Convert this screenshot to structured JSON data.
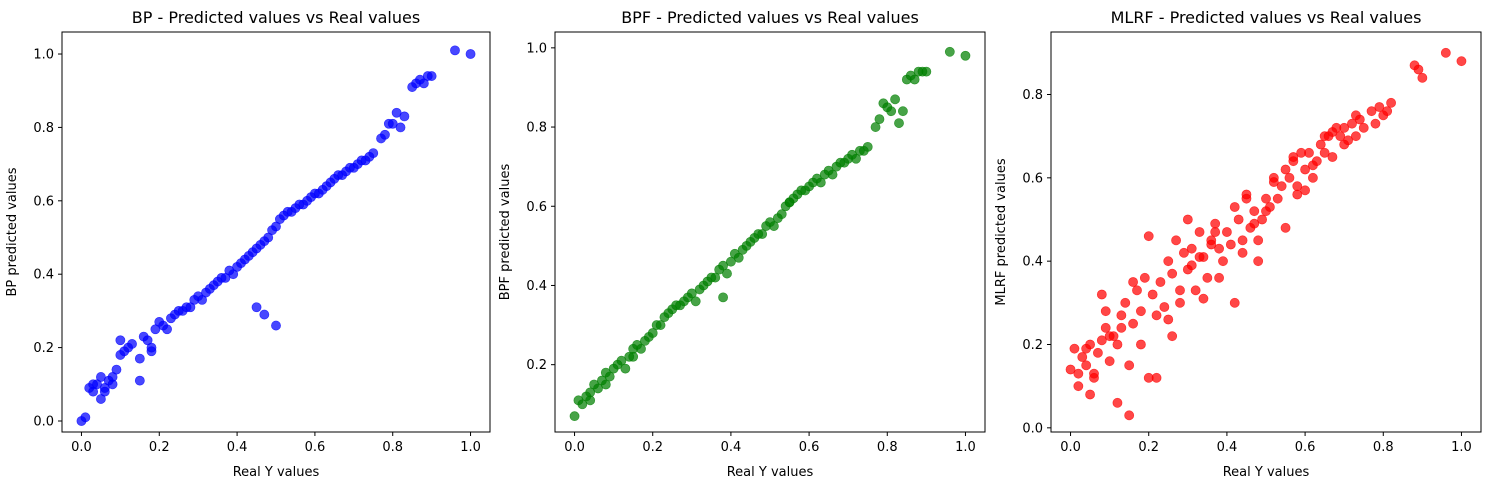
{
  "chart_data": [
    {
      "type": "scatter",
      "title": "BP - Predicted values vs Real values",
      "xlabel": "Real Y values",
      "ylabel": "BP predicted values",
      "xlim": [
        -0.05,
        1.05
      ],
      "ylim": [
        -0.03,
        1.06
      ],
      "xticks": [
        "0.0",
        "0.2",
        "0.4",
        "0.6",
        "0.8",
        "1.0"
      ],
      "yticks": [
        "0.0",
        "0.2",
        "0.4",
        "0.6",
        "0.8",
        "1.0"
      ],
      "color": "#0000ff",
      "grid": false,
      "series": [
        {
          "x": [
            0.0,
            0.01,
            0.02,
            0.03,
            0.04,
            0.05,
            0.05,
            0.06,
            0.07,
            0.08,
            0.09,
            0.1,
            0.1,
            0.11,
            0.12,
            0.13,
            0.15,
            0.16,
            0.17,
            0.18,
            0.19,
            0.2,
            0.21,
            0.22,
            0.23,
            0.24,
            0.25,
            0.26,
            0.27,
            0.28,
            0.29,
            0.3,
            0.31,
            0.32,
            0.33,
            0.34,
            0.35,
            0.36,
            0.37,
            0.38,
            0.39,
            0.4,
            0.41,
            0.42,
            0.43,
            0.44,
            0.45,
            0.46,
            0.47,
            0.48,
            0.49,
            0.5,
            0.51,
            0.52,
            0.53,
            0.54,
            0.55,
            0.56,
            0.57,
            0.58,
            0.59,
            0.6,
            0.61,
            0.62,
            0.63,
            0.64,
            0.65,
            0.66,
            0.67,
            0.68,
            0.69,
            0.7,
            0.71,
            0.72,
            0.73,
            0.74,
            0.75,
            0.77,
            0.78,
            0.79,
            0.8,
            0.81,
            0.82,
            0.83,
            0.85,
            0.86,
            0.87,
            0.88,
            0.89,
            0.9,
            0.96,
            1.0,
            0.45,
            0.47,
            0.5,
            0.03,
            0.06,
            0.08,
            0.15,
            0.18
          ],
          "y": [
            0.0,
            0.01,
            0.09,
            0.08,
            0.1,
            0.06,
            0.12,
            0.09,
            0.11,
            0.1,
            0.14,
            0.18,
            0.22,
            0.19,
            0.2,
            0.21,
            0.17,
            0.23,
            0.22,
            0.19,
            0.25,
            0.27,
            0.26,
            0.25,
            0.28,
            0.29,
            0.3,
            0.3,
            0.31,
            0.31,
            0.33,
            0.34,
            0.33,
            0.35,
            0.36,
            0.37,
            0.38,
            0.39,
            0.39,
            0.41,
            0.4,
            0.42,
            0.43,
            0.44,
            0.45,
            0.46,
            0.47,
            0.48,
            0.49,
            0.5,
            0.52,
            0.53,
            0.55,
            0.56,
            0.57,
            0.57,
            0.58,
            0.59,
            0.59,
            0.6,
            0.61,
            0.62,
            0.62,
            0.63,
            0.64,
            0.65,
            0.66,
            0.67,
            0.67,
            0.68,
            0.69,
            0.69,
            0.7,
            0.71,
            0.71,
            0.72,
            0.73,
            0.77,
            0.78,
            0.81,
            0.81,
            0.84,
            0.8,
            0.83,
            0.91,
            0.92,
            0.93,
            0.92,
            0.94,
            0.94,
            1.01,
            1.0,
            0.31,
            0.29,
            0.26,
            0.1,
            0.08,
            0.12,
            0.11,
            0.2
          ]
        }
      ]
    },
    {
      "type": "scatter",
      "title": "BPF - Predicted values vs Real values",
      "xlabel": "Real Y values",
      "ylabel": "BPF predicted values",
      "xlim": [
        -0.05,
        1.05
      ],
      "ylim": [
        0.03,
        1.04
      ],
      "xticks": [
        "0.0",
        "0.2",
        "0.4",
        "0.6",
        "0.8",
        "1.0"
      ],
      "yticks": [
        "0.2",
        "0.4",
        "0.6",
        "0.8",
        "1.0"
      ],
      "color": "#008000",
      "grid": false,
      "series": [
        {
          "x": [
            0.0,
            0.01,
            0.02,
            0.03,
            0.04,
            0.05,
            0.06,
            0.07,
            0.08,
            0.09,
            0.1,
            0.11,
            0.12,
            0.13,
            0.14,
            0.15,
            0.16,
            0.17,
            0.18,
            0.19,
            0.2,
            0.21,
            0.22,
            0.23,
            0.24,
            0.25,
            0.26,
            0.27,
            0.28,
            0.29,
            0.3,
            0.31,
            0.32,
            0.33,
            0.34,
            0.35,
            0.36,
            0.37,
            0.38,
            0.39,
            0.4,
            0.41,
            0.42,
            0.43,
            0.44,
            0.45,
            0.46,
            0.47,
            0.48,
            0.49,
            0.5,
            0.51,
            0.52,
            0.53,
            0.54,
            0.55,
            0.56,
            0.57,
            0.58,
            0.59,
            0.6,
            0.61,
            0.62,
            0.63,
            0.64,
            0.65,
            0.66,
            0.67,
            0.68,
            0.69,
            0.7,
            0.71,
            0.72,
            0.73,
            0.74,
            0.75,
            0.77,
            0.78,
            0.79,
            0.8,
            0.81,
            0.82,
            0.83,
            0.84,
            0.85,
            0.86,
            0.87,
            0.88,
            0.89,
            0.9,
            0.96,
            1.0,
            0.04,
            0.08,
            0.15,
            0.38,
            0.55
          ],
          "y": [
            0.07,
            0.11,
            0.1,
            0.12,
            0.13,
            0.15,
            0.14,
            0.16,
            0.15,
            0.17,
            0.19,
            0.2,
            0.21,
            0.19,
            0.22,
            0.24,
            0.25,
            0.24,
            0.26,
            0.27,
            0.28,
            0.3,
            0.3,
            0.32,
            0.33,
            0.34,
            0.35,
            0.35,
            0.36,
            0.37,
            0.38,
            0.36,
            0.39,
            0.4,
            0.41,
            0.42,
            0.42,
            0.44,
            0.45,
            0.43,
            0.46,
            0.48,
            0.47,
            0.49,
            0.5,
            0.51,
            0.52,
            0.53,
            0.53,
            0.55,
            0.56,
            0.55,
            0.57,
            0.58,
            0.6,
            0.61,
            0.62,
            0.63,
            0.64,
            0.64,
            0.65,
            0.66,
            0.67,
            0.66,
            0.68,
            0.69,
            0.68,
            0.7,
            0.71,
            0.71,
            0.72,
            0.73,
            0.72,
            0.74,
            0.74,
            0.75,
            0.8,
            0.82,
            0.86,
            0.85,
            0.84,
            0.87,
            0.81,
            0.84,
            0.92,
            0.93,
            0.92,
            0.94,
            0.94,
            0.94,
            0.99,
            0.98,
            0.11,
            0.18,
            0.22,
            0.37,
            0.61
          ]
        }
      ]
    },
    {
      "type": "scatter",
      "title": "MLRF - Predicted values vs Real values",
      "xlabel": "Real Y values",
      "ylabel": "MLRF predicted values",
      "xlim": [
        -0.05,
        1.05
      ],
      "ylim": [
        -0.01,
        0.95
      ],
      "xticks": [
        "0.0",
        "0.2",
        "0.4",
        "0.6",
        "0.8",
        "1.0"
      ],
      "yticks": [
        "0.0",
        "0.2",
        "0.4",
        "0.6",
        "0.8"
      ],
      "color": "#ff0000",
      "grid": false,
      "series": [
        {
          "x": [
            0.0,
            0.01,
            0.02,
            0.03,
            0.04,
            0.05,
            0.06,
            0.07,
            0.08,
            0.09,
            0.1,
            0.11,
            0.12,
            0.13,
            0.14,
            0.15,
            0.16,
            0.17,
            0.18,
            0.19,
            0.2,
            0.21,
            0.22,
            0.23,
            0.24,
            0.25,
            0.26,
            0.27,
            0.28,
            0.29,
            0.3,
            0.31,
            0.32,
            0.33,
            0.34,
            0.35,
            0.36,
            0.37,
            0.38,
            0.39,
            0.4,
            0.41,
            0.42,
            0.43,
            0.44,
            0.45,
            0.46,
            0.47,
            0.48,
            0.49,
            0.5,
            0.51,
            0.52,
            0.53,
            0.54,
            0.55,
            0.56,
            0.57,
            0.58,
            0.59,
            0.6,
            0.61,
            0.62,
            0.63,
            0.64,
            0.65,
            0.66,
            0.67,
            0.68,
            0.69,
            0.7,
            0.71,
            0.72,
            0.73,
            0.74,
            0.75,
            0.77,
            0.78,
            0.79,
            0.8,
            0.81,
            0.82,
            0.88,
            0.89,
            0.9,
            0.96,
            1.0,
            0.02,
            0.05,
            0.08,
            0.1,
            0.12,
            0.15,
            0.18,
            0.2,
            0.22,
            0.25,
            0.28,
            0.3,
            0.33,
            0.36,
            0.38,
            0.42,
            0.45,
            0.48,
            0.5,
            0.55,
            0.58,
            0.62,
            0.65,
            0.7,
            0.04,
            0.06,
            0.09,
            0.13,
            0.16,
            0.26,
            0.31,
            0.34,
            0.37,
            0.44,
            0.47,
            0.52,
            0.57,
            0.6,
            0.67,
            0.73
          ],
          "y": [
            0.14,
            0.19,
            0.1,
            0.17,
            0.15,
            0.2,
            0.13,
            0.18,
            0.21,
            0.24,
            0.16,
            0.22,
            0.06,
            0.27,
            0.3,
            0.03,
            0.25,
            0.33,
            0.2,
            0.36,
            0.12,
            0.32,
            0.27,
            0.35,
            0.29,
            0.4,
            0.37,
            0.45,
            0.3,
            0.42,
            0.38,
            0.43,
            0.33,
            0.47,
            0.41,
            0.36,
            0.45,
            0.49,
            0.43,
            0.4,
            0.47,
            0.44,
            0.53,
            0.5,
            0.45,
            0.56,
            0.48,
            0.52,
            0.4,
            0.5,
            0.55,
            0.53,
            0.6,
            0.55,
            0.58,
            0.62,
            0.6,
            0.64,
            0.56,
            0.66,
            0.62,
            0.66,
            0.6,
            0.64,
            0.68,
            0.66,
            0.7,
            0.65,
            0.72,
            0.7,
            0.72,
            0.69,
            0.73,
            0.7,
            0.74,
            0.72,
            0.76,
            0.73,
            0.77,
            0.75,
            0.76,
            0.78,
            0.87,
            0.86,
            0.84,
            0.9,
            0.88,
            0.13,
            0.08,
            0.32,
            0.22,
            0.2,
            0.15,
            0.28,
            0.46,
            0.12,
            0.26,
            0.33,
            0.5,
            0.41,
            0.44,
            0.36,
            0.3,
            0.55,
            0.45,
            0.52,
            0.48,
            0.58,
            0.63,
            0.7,
            0.68,
            0.19,
            0.12,
            0.28,
            0.24,
            0.35,
            0.22,
            0.39,
            0.31,
            0.47,
            0.42,
            0.49,
            0.59,
            0.65,
            0.57,
            0.71,
            0.75
          ]
        }
      ]
    }
  ]
}
